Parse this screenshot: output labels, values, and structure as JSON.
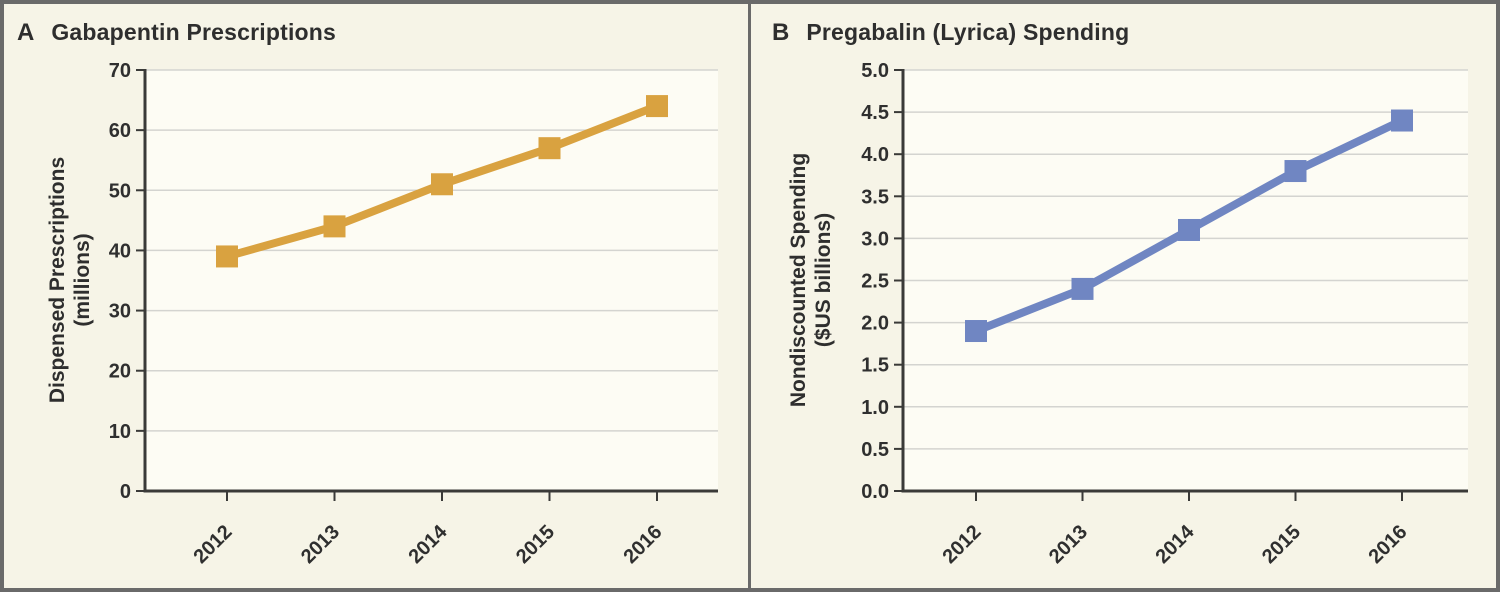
{
  "figure": {
    "border_color": "#6a6a6a",
    "background_color": "#f6f4e7",
    "plot_background_color": "#fdfcf4",
    "gridline_color": "#d4d4d0",
    "axis_color": "#3a3a38",
    "text_color": "#2f2f2f"
  },
  "chart_data": [
    {
      "type": "line",
      "panel_label": "A",
      "title": "Gabapentin Prescriptions",
      "ylabel_line1": "Dispensed Prescriptions",
      "ylabel_line2": "(millions)",
      "xlabel": "",
      "categories": [
        "2012",
        "2013",
        "2014",
        "2015",
        "2016"
      ],
      "values": [
        39,
        44,
        51,
        57,
        64
      ],
      "ylim": [
        0,
        70
      ],
      "y_tick_labels": [
        "0",
        "10",
        "20",
        "30",
        "40",
        "50",
        "60",
        "70"
      ],
      "grid": "horizontal",
      "legend": "none",
      "marker": "square",
      "line_color": "#d9a240"
    },
    {
      "type": "line",
      "panel_label": "B",
      "title": "Pregabalin (Lyrica) Spending",
      "ylabel_line1": "Nondiscounted Spending",
      "ylabel_line2": "($US billions)",
      "xlabel": "",
      "categories": [
        "2012",
        "2013",
        "2014",
        "2015",
        "2016"
      ],
      "values": [
        1.9,
        2.4,
        3.1,
        3.8,
        4.4
      ],
      "ylim": [
        0,
        5
      ],
      "y_tick_labels": [
        "0.0",
        "0.5",
        "1.0",
        "1.5",
        "2.0",
        "2.5",
        "3.0",
        "3.5",
        "4.0",
        "4.5",
        "5.0"
      ],
      "grid": "horizontal",
      "legend": "none",
      "marker": "square",
      "line_color": "#7086c2"
    }
  ]
}
